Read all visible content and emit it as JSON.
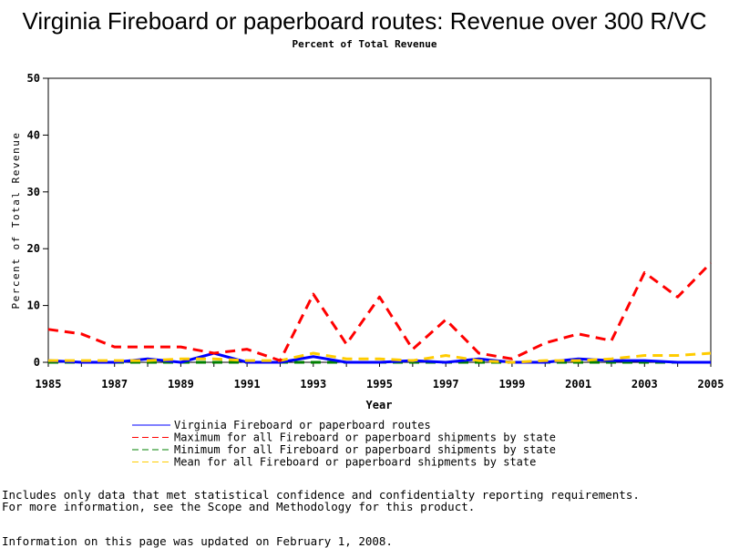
{
  "chart_data": {
    "type": "line",
    "title": "Virginia Fireboard or paperboard routes: Revenue over 300 R/VC",
    "subtitle": "Percent of Total Revenue",
    "xlabel": "Year",
    "ylabel": "Percent of Total Revenue",
    "xlim": [
      1985,
      2005
    ],
    "ylim": [
      0,
      50
    ],
    "x_ticks": [
      "1985",
      "1987",
      "1989",
      "1991",
      "1993",
      "1995",
      "1997",
      "1999",
      "2001",
      "2003",
      "2005"
    ],
    "y_ticks": [
      "0",
      "10",
      "20",
      "30",
      "40",
      "50"
    ],
    "legend_position": "bottom",
    "x": [
      1985,
      1986,
      1987,
      1988,
      1989,
      1990,
      1991,
      1992,
      1993,
      1994,
      1995,
      1996,
      1997,
      1998,
      1999,
      2000,
      2001,
      2002,
      2003,
      2004,
      2005
    ],
    "series": [
      {
        "name": "Virginia Fireboard or paperboard routes",
        "color": "#0000ff",
        "dash": "solid",
        "values": [
          0.3,
          0.0,
          0.0,
          0.6,
          0.0,
          1.6,
          0.0,
          0.0,
          1.0,
          0.0,
          0.0,
          0.3,
          0.0,
          0.6,
          0.0,
          0.0,
          0.6,
          0.3,
          0.3,
          0.0,
          0.0
        ]
      },
      {
        "name": "Maximum for all Fireboard or paperboard shipments by state",
        "color": "#ff0000",
        "dash": "dashed",
        "values": [
          5.8,
          5.0,
          2.7,
          2.7,
          2.7,
          1.6,
          2.3,
          0.3,
          12.0,
          3.2,
          11.5,
          2.3,
          7.5,
          1.6,
          0.6,
          3.4,
          5.0,
          3.8,
          15.8,
          11.5,
          17.5
        ]
      },
      {
        "name": "Minimum for all Fireboard or paperboard shipments by state",
        "color": "#008000",
        "dash": "dashed",
        "values": [
          0,
          0,
          0,
          0,
          0,
          0,
          0,
          0,
          0,
          0,
          0,
          0,
          0,
          0,
          0,
          0,
          0,
          0,
          0,
          0,
          0
        ]
      },
      {
        "name": "Mean for all Fireboard or paperboard shipments by state",
        "color": "#ffcc00",
        "dash": "dashed",
        "values": [
          0.3,
          0.3,
          0.3,
          0.3,
          0.6,
          0.6,
          0.3,
          0.3,
          1.6,
          0.6,
          0.6,
          0.3,
          1.2,
          0.3,
          0.0,
          0.3,
          0.3,
          0.6,
          1.2,
          1.2,
          1.6
        ]
      }
    ]
  },
  "footnotes": {
    "line1": "Includes only data that met statistical confidence and confidentialty reporting requirements.",
    "line2": "For more information, see the Scope and Methodology for this product.",
    "line3": "Information on this page was updated on February 1, 2008."
  }
}
